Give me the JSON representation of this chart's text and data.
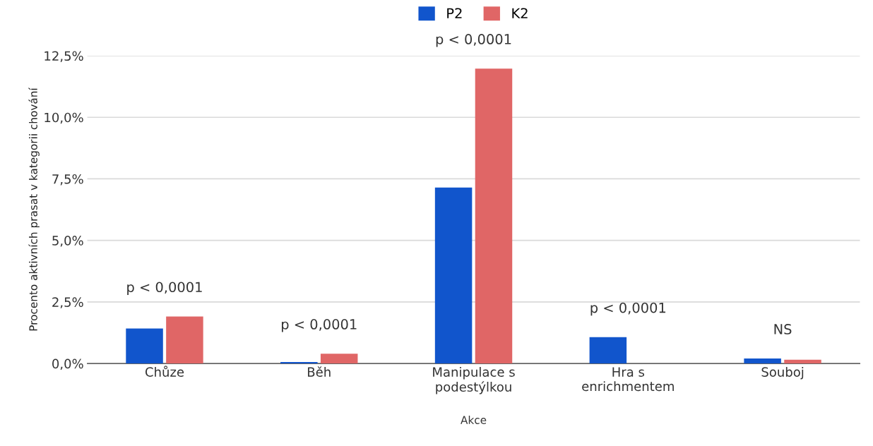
{
  "chart_data": {
    "type": "bar",
    "xlabel": "Akce",
    "ylabel": "Procento aktivních prasat v kategorii chování",
    "categories": [
      "Chůze",
      "Běh",
      "Manipulace s\npodestýlkou",
      "Hra s\nenrichmentem",
      "Souboj"
    ],
    "series": [
      {
        "name": "P2",
        "color": "#1155cc",
        "values": [
          1.42,
          0.06,
          7.15,
          1.07,
          0.2
        ]
      },
      {
        "name": "K2",
        "color": "#e06666",
        "values": [
          1.91,
          0.4,
          11.98,
          0,
          0.15
        ]
      }
    ],
    "ylim": [
      0,
      12.5
    ],
    "yticks": [
      {
        "value": 0,
        "label": "0,0%"
      },
      {
        "value": 2.5,
        "label": "2,5%"
      },
      {
        "value": 5,
        "label": "5,0%"
      },
      {
        "value": 7.5,
        "label": "7,5%"
      },
      {
        "value": 10,
        "label": "10,0%"
      },
      {
        "value": 12.5,
        "label": "12,5%"
      }
    ],
    "annotations": [
      "p < 0,0001",
      "p < 0,0001",
      "p < 0,0001",
      "p < 0,0001",
      "NS"
    ],
    "grid": "y",
    "legend": "top"
  }
}
